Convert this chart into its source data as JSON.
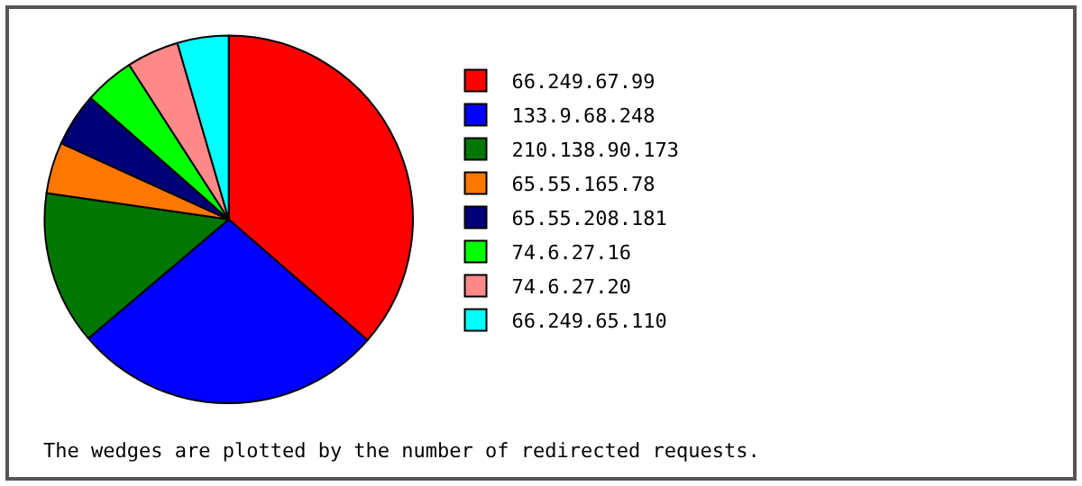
{
  "chart_data": {
    "type": "pie",
    "categories": [
      "66.249.67.99",
      "133.9.68.248",
      "210.138.90.173",
      "65.55.165.78",
      "65.55.208.181",
      "74.6.27.16",
      "74.6.27.20",
      "66.249.65.110"
    ],
    "values": [
      36.4,
      27.4,
      13.5,
      4.5,
      4.7,
      4.4,
      4.6,
      4.5
    ],
    "colors": [
      "#ff0000",
      "#0000ff",
      "#007700",
      "#ff7700",
      "#000077",
      "#00ff00",
      "#ff8888",
      "#00ffff"
    ],
    "legend": "right",
    "annotations": [
      "The wedges are plotted by the number of redirected requests."
    ]
  }
}
